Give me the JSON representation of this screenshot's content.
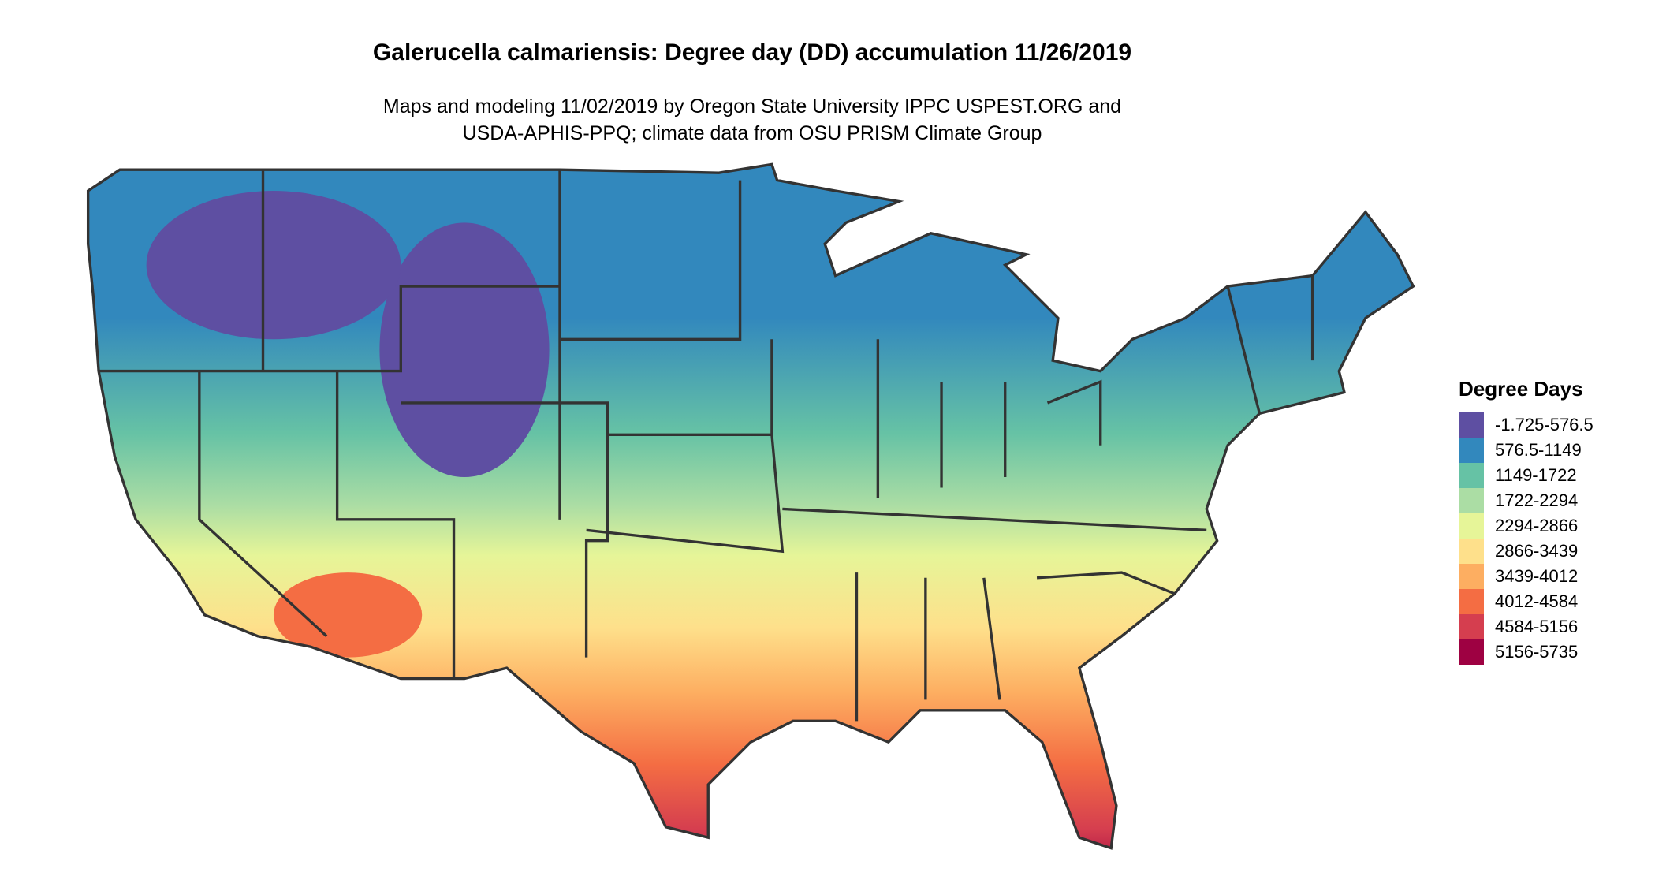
{
  "title": "Galerucella calmariensis: Degree day (DD) accumulation 11/26/2019",
  "subtitle_lines": [
    "Maps and modeling 11/02/2019 by Oregon State University IPPC USPEST.ORG and",
    "USDA-APHIS-PPQ; climate data from OSU PRISM Climate Group"
  ],
  "legend": {
    "title": "Degree Days",
    "items": [
      {
        "label": "-1.725-576.5",
        "color": "#5E4FA2"
      },
      {
        "label": "576.5-1149",
        "color": "#3288BD"
      },
      {
        "label": "1149-1722",
        "color": "#66C2A5"
      },
      {
        "label": "1722-2294",
        "color": "#ABDDA4"
      },
      {
        "label": "2294-2866",
        "color": "#E6F598"
      },
      {
        "label": "2866-3439",
        "color": "#FEE08B"
      },
      {
        "label": "3439-4012",
        "color": "#FDAE61"
      },
      {
        "label": "4012-4584",
        "color": "#F46D43"
      },
      {
        "label": "4584-5156",
        "color": "#D53E4F"
      },
      {
        "label": "5156-5735",
        "color": "#9E0142"
      }
    ]
  },
  "chart_data": {
    "type": "heatmap",
    "region": "Contiguous United States",
    "legend_placement": "right",
    "bins": [
      [
        -1.725,
        576.5
      ],
      [
        576.5,
        1149
      ],
      [
        1149,
        1722
      ],
      [
        1722,
        2294
      ],
      [
        2294,
        2866
      ],
      [
        2866,
        3439
      ],
      [
        3439,
        4012
      ],
      [
        4012,
        4584
      ],
      [
        4584,
        5156
      ],
      [
        5156,
        5735
      ]
    ]
  }
}
